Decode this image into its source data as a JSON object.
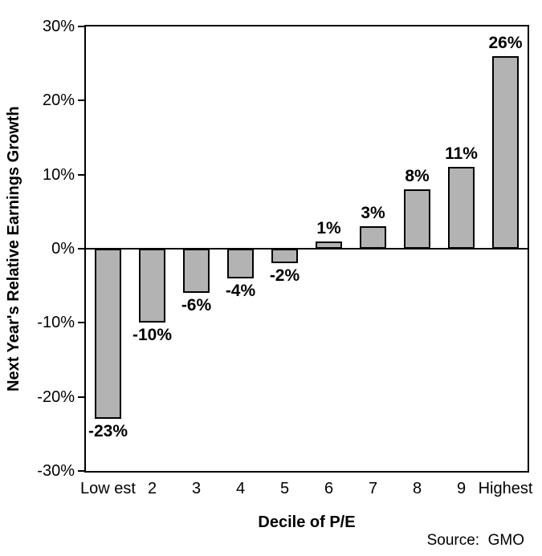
{
  "chart_data": {
    "type": "bar",
    "categories": [
      "Low est",
      "2",
      "3",
      "4",
      "5",
      "6",
      "7",
      "8",
      "9",
      "Highest"
    ],
    "values": [
      -23,
      -10,
      -6,
      -4,
      -2,
      1,
      3,
      8,
      11,
      26
    ],
    "value_labels": [
      "-23%",
      "-10%",
      "-6%",
      "-4%",
      "-2%",
      "1%",
      "3%",
      "8%",
      "11%",
      "26%"
    ],
    "title": "",
    "xlabel": "Decile of P/E",
    "ylabel": "Next Year's Relative Earnings Growth",
    "ylim": [
      -30,
      30
    ],
    "yticks": [
      30,
      20,
      10,
      0,
      -10,
      -20,
      -30
    ],
    "ytick_labels": [
      "30%",
      "20%",
      "10%",
      "0%",
      "-10%",
      "-20%",
      "-30%"
    ],
    "grid": false,
    "legend": false,
    "bar_color": "#b3b3b3",
    "bar_border_color": "#000000",
    "source": "Source:  GMO"
  }
}
